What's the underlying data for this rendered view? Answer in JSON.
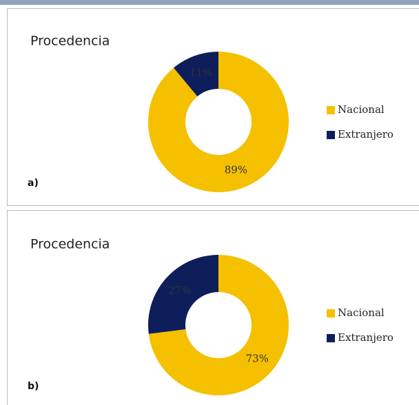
{
  "chart_data": [
    {
      "type": "pie",
      "title": "Procedencia",
      "panel_label": "a)",
      "categories": [
        "Nacional",
        "Extranjero"
      ],
      "values": [
        89,
        11
      ],
      "value_labels": [
        "89%",
        "11%"
      ],
      "colors": [
        "#f5c000",
        "#0e1e5b"
      ],
      "donut": true,
      "legend": "right"
    },
    {
      "type": "pie",
      "title": "Procedencia",
      "panel_label": "b)",
      "categories": [
        "Nacional",
        "Extranjero"
      ],
      "values": [
        73,
        27
      ],
      "value_labels": [
        "73%",
        "27%"
      ],
      "colors": [
        "#f5c000",
        "#0e1e5b"
      ],
      "donut": true,
      "legend": "right"
    }
  ]
}
